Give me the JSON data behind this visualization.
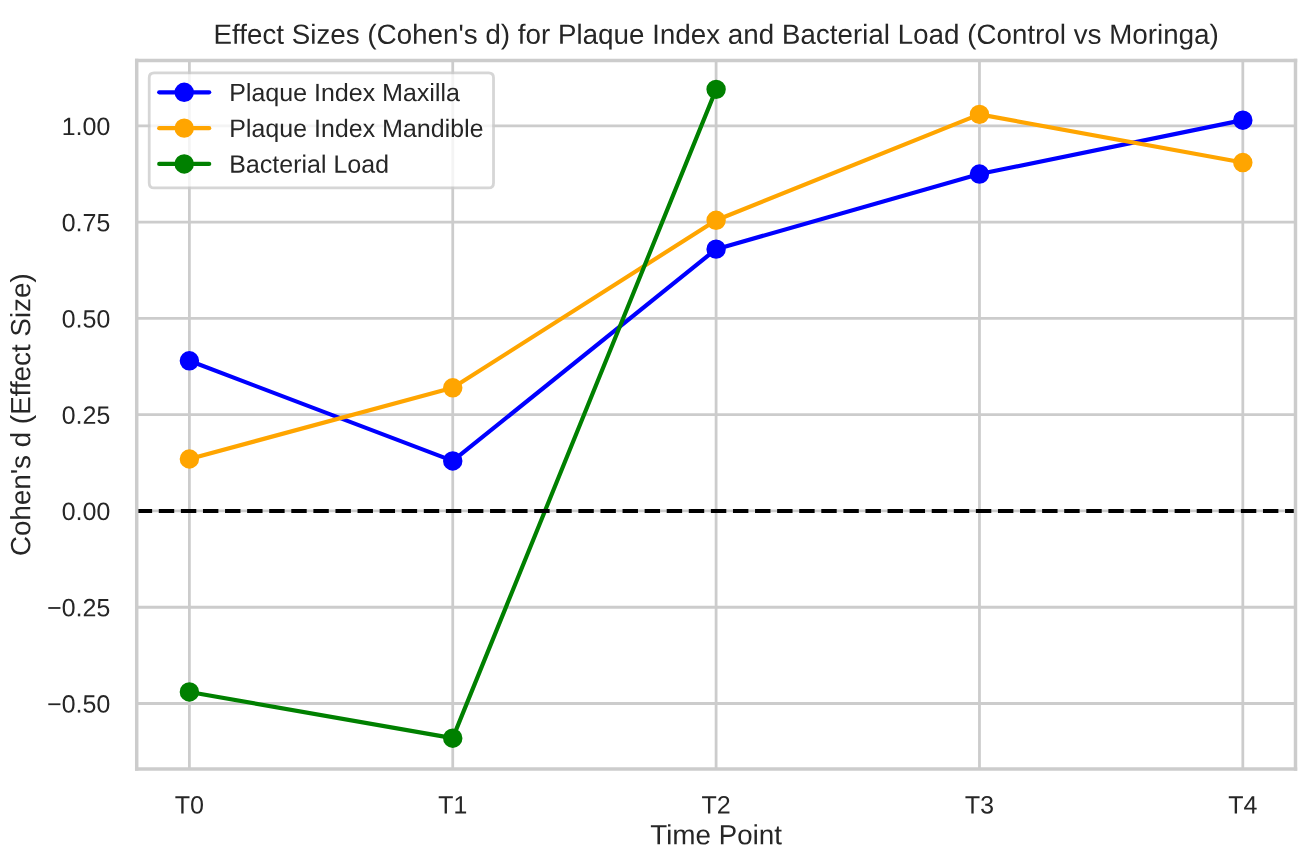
{
  "chart_data": {
    "type": "line",
    "title": "Effect Sizes (Cohen's d) for Plaque Index and Bacterial Load (Control vs Moringa)",
    "xlabel": "Time Point",
    "ylabel": "Cohen's d (Effect Size)",
    "categories": [
      "T0",
      "T1",
      "T2",
      "T3",
      "T4"
    ],
    "series": [
      {
        "name": "Plaque Index Maxilla",
        "color": "#0000ff",
        "values": [
          0.39,
          0.13,
          0.68,
          0.875,
          1.015
        ]
      },
      {
        "name": "Plaque Index Mandible",
        "color": "#ffa500",
        "values": [
          0.135,
          0.32,
          0.755,
          1.03,
          0.905
        ]
      },
      {
        "name": "Bacterial Load",
        "color": "#008000",
        "values": [
          -0.47,
          -0.59,
          1.095,
          null,
          null
        ]
      }
    ],
    "ylim": [
      -0.67,
      1.17
    ],
    "yticks": [
      {
        "value": -0.5,
        "label": "−0.50"
      },
      {
        "value": -0.25,
        "label": "−0.25"
      },
      {
        "value": 0,
        "label": "0.00"
      },
      {
        "value": 0.25,
        "label": "0.25"
      },
      {
        "value": 0.5,
        "label": "0.50"
      },
      {
        "value": 0.75,
        "label": "0.75"
      },
      {
        "value": 1.0,
        "label": "1.00"
      }
    ],
    "ref_lines": [
      {
        "axis": "y",
        "value": 0,
        "label": null,
        "color": "#000000",
        "line_style": "dashed"
      }
    ],
    "grid": true,
    "legend": "top left",
    "marker": "circle",
    "line_style": "solid"
  }
}
